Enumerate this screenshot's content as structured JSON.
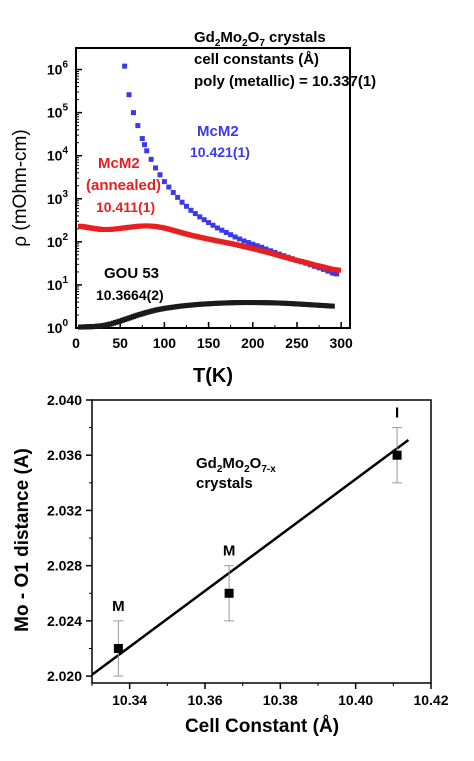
{
  "chart_data": [
    {
      "type": "scatter",
      "yscale": "log",
      "xlabel": "T(K)",
      "ylabel": "ρ (mOhm-cm)",
      "xlim": [
        0,
        310
      ],
      "ylim_exp": [
        0,
        6.5
      ],
      "xticks": [
        0,
        50,
        100,
        150,
        200,
        250,
        300
      ],
      "yticks_exp": [
        0,
        1,
        2,
        3,
        4,
        5,
        6
      ],
      "ytick_base": "10",
      "grid": false,
      "title_lines": [
        "Gd2Mo2O7 crystals",
        "cell constants (Å)",
        "poly (metallic) = 10.337(1)"
      ],
      "series": [
        {
          "name": "McM2",
          "label_line2": "10.421(1)",
          "color": "#3a3ae6",
          "x": [
            55,
            60,
            65,
            70,
            75,
            80,
            90,
            100,
            110,
            120,
            130,
            140,
            150,
            160,
            170,
            180,
            190,
            200,
            210,
            220,
            230,
            240,
            250,
            260,
            270,
            280,
            290,
            295
          ],
          "y": [
            1200000,
            260000,
            100000,
            50000,
            25000,
            13000,
            5200,
            2500,
            1400,
            830,
            540,
            380,
            280,
            210,
            165,
            130,
            105,
            88,
            75,
            62,
            52,
            44,
            37,
            32,
            27,
            23,
            19,
            18
          ]
        },
        {
          "name": "McM2",
          "label_line2": "(annealed)",
          "label_line3": "10.411(1)",
          "color": "#e62020",
          "x": [
            5,
            10,
            15,
            20,
            25,
            30,
            40,
            50,
            60,
            70,
            80,
            90,
            100,
            110,
            120,
            130,
            140,
            150,
            160,
            170,
            180,
            190,
            200,
            210,
            220,
            230,
            240,
            250,
            260,
            270,
            280,
            290,
            297
          ],
          "y": [
            230,
            222,
            213,
            205,
            198,
            193,
            195,
            205,
            218,
            230,
            235,
            228,
            210,
            185,
            162,
            143,
            128,
            116,
            105,
            96,
            87,
            78,
            70,
            62,
            55,
            48,
            42,
            37,
            33,
            29,
            26,
            23,
            22
          ]
        },
        {
          "name": "GOU 53",
          "label_line2": "10.3664(2)",
          "color": "#1a1a1a",
          "x": [
            5,
            10,
            15,
            20,
            25,
            30,
            40,
            50,
            60,
            70,
            80,
            90,
            100,
            110,
            120,
            130,
            140,
            150,
            160,
            170,
            180,
            190,
            200,
            210,
            220,
            230,
            240,
            250,
            260,
            270,
            280,
            290
          ],
          "y": [
            1.05,
            1.06,
            1.07,
            1.08,
            1.1,
            1.13,
            1.25,
            1.45,
            1.7,
            2.0,
            2.3,
            2.6,
            2.85,
            3.05,
            3.25,
            3.4,
            3.55,
            3.65,
            3.75,
            3.82,
            3.88,
            3.9,
            3.9,
            3.88,
            3.85,
            3.8,
            3.72,
            3.62,
            3.52,
            3.42,
            3.32,
            3.22
          ]
        }
      ]
    },
    {
      "type": "scatter",
      "xlabel": "Cell Constant (Å)",
      "ylabel": "Mo - O1 distance (A)",
      "xlim": [
        10.33,
        10.42
      ],
      "ylim": [
        2.0195,
        2.04
      ],
      "xticks": [
        "10.34",
        "10.36",
        "10.38",
        "10.40",
        "10.42"
      ],
      "yticks": [
        "2.020",
        "2.024",
        "2.028",
        "2.032",
        "2.036",
        "2.040"
      ],
      "grid": false,
      "annotation_lines": [
        "Gd2Mo2O7-x",
        "crystals"
      ],
      "points": [
        {
          "x": 10.337,
          "y": 2.022,
          "err": 0.002,
          "label": "M"
        },
        {
          "x": 10.3664,
          "y": 2.026,
          "err": 0.002,
          "label": "M"
        },
        {
          "x": 10.411,
          "y": 2.036,
          "err": 0.002,
          "label": "I"
        }
      ],
      "fit_line": {
        "x": [
          10.33,
          10.414
        ],
        "y": [
          2.0201,
          2.0371
        ]
      },
      "fit_color": "#000000"
    }
  ]
}
